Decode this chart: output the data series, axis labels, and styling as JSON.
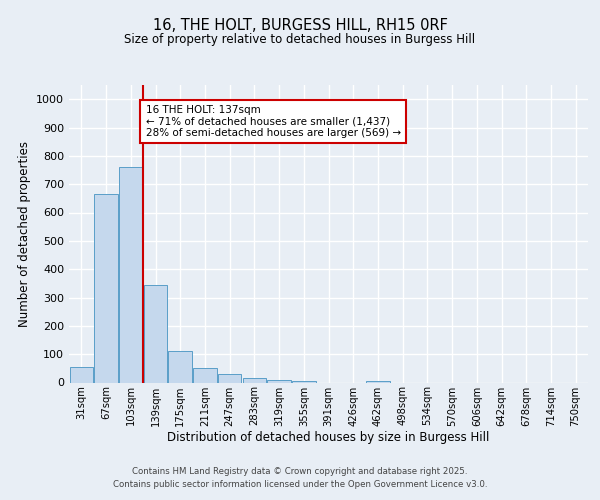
{
  "title1": "16, THE HOLT, BURGESS HILL, RH15 0RF",
  "title2": "Size of property relative to detached houses in Burgess Hill",
  "xlabel": "Distribution of detached houses by size in Burgess Hill",
  "ylabel": "Number of detached properties",
  "bar_labels": [
    "31sqm",
    "67sqm",
    "103sqm",
    "139sqm",
    "175sqm",
    "211sqm",
    "247sqm",
    "283sqm",
    "319sqm",
    "355sqm",
    "391sqm",
    "426sqm",
    "462sqm",
    "498sqm",
    "534sqm",
    "570sqm",
    "606sqm",
    "642sqm",
    "678sqm",
    "714sqm",
    "750sqm"
  ],
  "bar_values": [
    55,
    665,
    760,
    345,
    110,
    50,
    30,
    15,
    10,
    5,
    0,
    0,
    5,
    0,
    0,
    0,
    0,
    0,
    0,
    0,
    0
  ],
  "bar_color": "#c5d8ed",
  "bar_edge_color": "#5a9ec8",
  "vline_x_index": 3,
  "vline_color": "#cc0000",
  "annotation_text": "16 THE HOLT: 137sqm\n← 71% of detached houses are smaller (1,437)\n28% of semi-detached houses are larger (569) →",
  "annotation_box_color": "#ffffff",
  "annotation_box_edge_color": "#cc0000",
  "ylim": [
    0,
    1050
  ],
  "yticks": [
    0,
    100,
    200,
    300,
    400,
    500,
    600,
    700,
    800,
    900,
    1000
  ],
  "bg_color": "#e8eef5",
  "plot_bg_color": "#e8eef5",
  "grid_color": "#ffffff",
  "footnote1": "Contains HM Land Registry data © Crown copyright and database right 2025.",
  "footnote2": "Contains public sector information licensed under the Open Government Licence v3.0."
}
